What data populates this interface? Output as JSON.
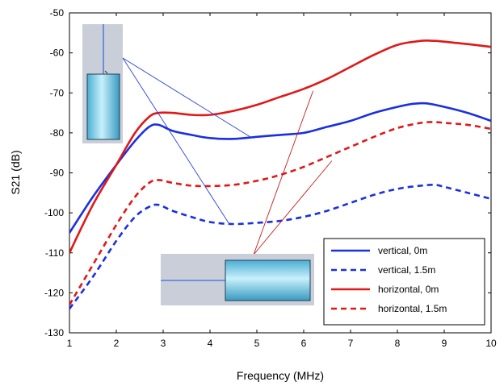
{
  "chart_data": {
    "type": "line",
    "title": "",
    "xlabel": "Frequency (MHz)",
    "ylabel": "S21 (dB)",
    "xlim": [
      1,
      10
    ],
    "ylim": [
      -130,
      -50
    ],
    "xticks": [
      1,
      2,
      3,
      4,
      5,
      6,
      7,
      8,
      9,
      10
    ],
    "yticks": [
      -130,
      -120,
      -110,
      -100,
      -90,
      -80,
      -70,
      -60,
      -50
    ],
    "grid": false,
    "legend_position": "bottom-right",
    "series": [
      {
        "name": "vertical, 0m",
        "color": "#1a2fe0",
        "dash": "solid",
        "x": [
          1.0,
          1.5,
          2.0,
          2.4,
          2.7,
          2.9,
          3.2,
          3.6,
          4.0,
          4.5,
          5.0,
          5.5,
          6.0,
          6.5,
          7.0,
          7.5,
          8.0,
          8.3,
          8.6,
          9.0,
          9.5,
          10.0
        ],
        "y": [
          -105,
          -96,
          -88,
          -82,
          -78.5,
          -78,
          -79.5,
          -80.5,
          -81.3,
          -81.5,
          -81,
          -80.5,
          -80,
          -78.5,
          -77,
          -75,
          -73.5,
          -72.8,
          -72.6,
          -73.5,
          -75,
          -77
        ]
      },
      {
        "name": "vertical, 1.5m",
        "color": "#1a2fe0",
        "dash": "dashed",
        "x": [
          1.0,
          1.5,
          2.0,
          2.4,
          2.7,
          2.9,
          3.2,
          3.6,
          4.0,
          4.5,
          5.0,
          5.5,
          6.0,
          6.5,
          7.0,
          7.5,
          8.0,
          8.5,
          8.8,
          9.0,
          9.5,
          10.0
        ],
        "y": [
          -124,
          -116,
          -107,
          -101,
          -98.5,
          -98,
          -99.5,
          -101,
          -102.3,
          -102.8,
          -102.5,
          -102,
          -101,
          -99.5,
          -97.5,
          -95.5,
          -94,
          -93.2,
          -93,
          -93.5,
          -95,
          -96.5
        ]
      },
      {
        "name": "horizontal, 0m",
        "color": "#e01818",
        "dash": "solid",
        "x": [
          1.0,
          1.5,
          2.0,
          2.4,
          2.7,
          2.9,
          3.2,
          3.6,
          4.0,
          4.5,
          5.0,
          5.5,
          6.0,
          6.5,
          7.0,
          7.5,
          8.0,
          8.5,
          8.8,
          9.0,
          9.5,
          10.0
        ],
        "y": [
          -110,
          -98,
          -88,
          -80,
          -76,
          -75,
          -75,
          -75.5,
          -75.5,
          -74.5,
          -73,
          -71,
          -69,
          -66.5,
          -63.5,
          -60.5,
          -58,
          -57,
          -57,
          -57.2,
          -57.8,
          -58.5
        ]
      },
      {
        "name": "horizontal, 1.5m",
        "color": "#e01818",
        "dash": "dashed",
        "x": [
          1.0,
          1.5,
          2.0,
          2.4,
          2.7,
          2.9,
          3.2,
          3.6,
          4.0,
          4.5,
          5.0,
          5.5,
          6.0,
          6.5,
          7.0,
          7.5,
          8.0,
          8.5,
          8.8,
          9.0,
          9.5,
          10.0
        ],
        "y": [
          -123,
          -113,
          -103,
          -96,
          -92.5,
          -91.8,
          -92.5,
          -93.2,
          -93.3,
          -93,
          -92,
          -90.5,
          -88.5,
          -86,
          -83.5,
          -81,
          -78.8,
          -77.5,
          -77.3,
          -77.5,
          -78,
          -79
        ]
      }
    ],
    "callouts": [
      {
        "target_series": "vertical, 0m",
        "line_color": "#2a3fd6",
        "anchor": [
          4.9,
          -81.3
        ],
        "inset": "vertical-antenna"
      },
      {
        "target_series": "vertical, 1.5m",
        "line_color": "#2a3fd6",
        "anchor": [
          4.4,
          -102.6
        ],
        "inset": "vertical-antenna"
      },
      {
        "target_series": "horizontal, 0m",
        "line_color": "#c81a1a",
        "anchor": [
          6.2,
          -69.5
        ],
        "inset": "horizontal-antenna"
      },
      {
        "target_series": "horizontal, 1.5m",
        "line_color": "#c81a1a",
        "anchor": [
          6.6,
          -87
        ],
        "inset": "horizontal-antenna"
      }
    ]
  }
}
